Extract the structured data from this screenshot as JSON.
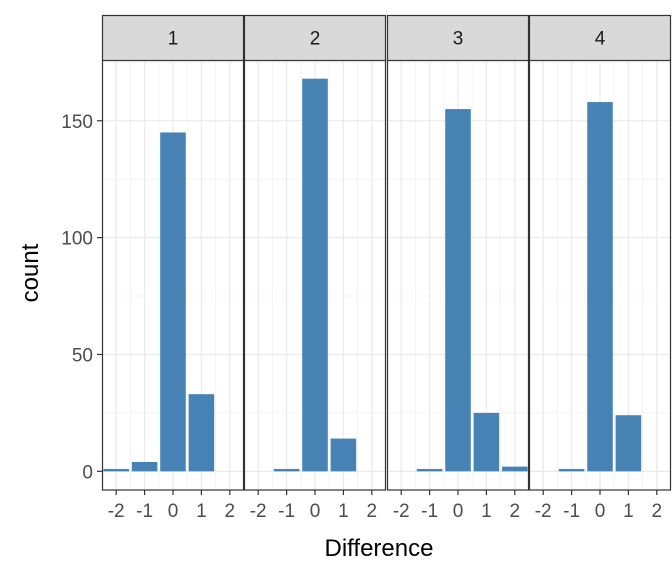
{
  "chart_data": {
    "type": "bar",
    "xlabel": "Difference",
    "ylabel": "count",
    "x_ticks": [
      -2,
      -1,
      0,
      1,
      2
    ],
    "x_tick_labels": [
      "-2",
      "-1",
      "0",
      "1",
      "2"
    ],
    "xlim": [
      -2.5,
      2.5
    ],
    "y_ticks": [
      0,
      50,
      100,
      150
    ],
    "y_tick_labels": [
      "0",
      "50",
      "100",
      "150"
    ],
    "ylim": [
      -8,
      176
    ],
    "grid": true,
    "bar_color": "#4682B4",
    "strip_fill": "#D9D9D9",
    "facets": [
      {
        "label": "1",
        "x": [
          -2,
          -1,
          0,
          1
        ],
        "counts": [
          1,
          4,
          145,
          33
        ]
      },
      {
        "label": "2",
        "x": [
          -1,
          0,
          1
        ],
        "counts": [
          1,
          168,
          14
        ]
      },
      {
        "label": "3",
        "x": [
          -1,
          0,
          1,
          2
        ],
        "counts": [
          1,
          155,
          25,
          2
        ]
      },
      {
        "label": "4",
        "x": [
          -1,
          0,
          1
        ],
        "counts": [
          1,
          158,
          24
        ]
      }
    ]
  }
}
